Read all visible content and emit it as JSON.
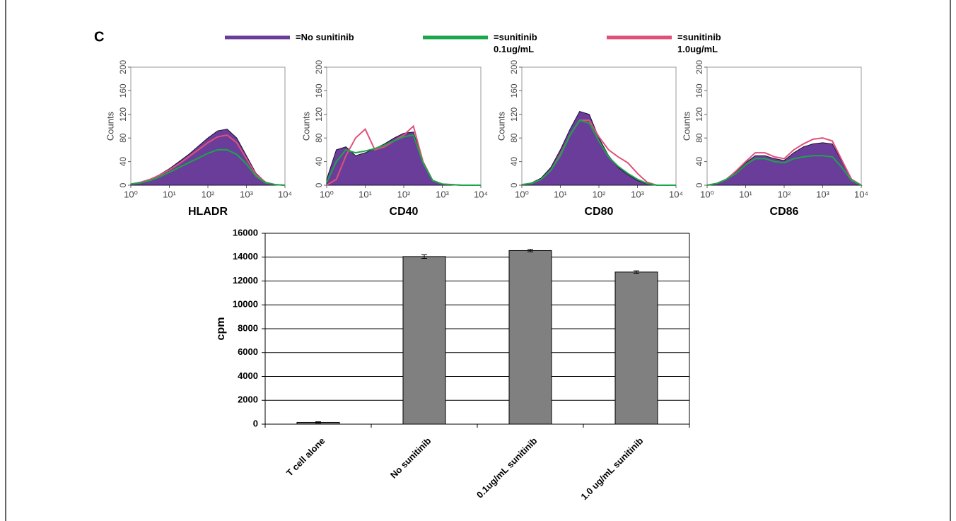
{
  "panel_label": "C",
  "chart_data": [
    {
      "type": "line",
      "xlabel": "HLADR",
      "ylabel": "Counts",
      "xscale": "log",
      "xlim": [
        1,
        10000
      ],
      "xticks": [
        {
          "value": 1,
          "label": "10⁰"
        },
        {
          "value": 10,
          "label": "10¹"
        },
        {
          "value": 100,
          "label": "10²"
        },
        {
          "value": 1000,
          "label": "10³"
        },
        {
          "value": 10000,
          "label": "10⁴"
        }
      ],
      "ylim": [
        0,
        200
      ],
      "yticks": [
        0,
        40,
        80,
        120,
        160,
        200
      ],
      "x": [
        1,
        1.78,
        3.16,
        5.62,
        10,
        17.8,
        31.6,
        56.2,
        100,
        178,
        316,
        562,
        1000,
        1778,
        3162,
        5623,
        10000
      ],
      "series": [
        {
          "name": "=No sunitinib",
          "color": "#6a3d9a",
          "filled": true,
          "values": [
            2,
            5,
            10,
            18,
            28,
            40,
            52,
            66,
            80,
            92,
            95,
            80,
            50,
            20,
            5,
            1,
            0
          ]
        },
        {
          "name": "=sunitinib 0.1ug/mL",
          "color": "#1aa64a",
          "values": [
            2,
            4,
            8,
            14,
            22,
            30,
            38,
            46,
            54,
            60,
            60,
            52,
            36,
            15,
            4,
            1,
            0
          ]
        },
        {
          "name": "=sunitinib 1.0ug/mL",
          "color": "#e0507a",
          "values": [
            2,
            5,
            10,
            17,
            26,
            36,
            48,
            60,
            72,
            82,
            85,
            72,
            45,
            18,
            5,
            1,
            0
          ]
        }
      ]
    },
    {
      "type": "line",
      "xlabel": "CD40",
      "ylabel": "Counts",
      "xscale": "log",
      "xlim": [
        1,
        10000
      ],
      "xticks": [
        {
          "value": 1,
          "label": "10⁰"
        },
        {
          "value": 10,
          "label": "10¹"
        },
        {
          "value": 100,
          "label": "10²"
        },
        {
          "value": 1000,
          "label": "10³"
        },
        {
          "value": 10000,
          "label": "10⁴"
        }
      ],
      "ylim": [
        0,
        200
      ],
      "yticks": [
        0,
        40,
        80,
        120,
        160,
        200
      ],
      "x": [
        1,
        1.78,
        3.16,
        5.62,
        10,
        17.8,
        31.6,
        56.2,
        100,
        178,
        316,
        562,
        1000,
        1778,
        3162,
        5623,
        10000
      ],
      "series": [
        {
          "color": "#6a3d9a",
          "filled": true,
          "values": [
            10,
            60,
            65,
            50,
            55,
            62,
            70,
            80,
            88,
            90,
            40,
            8,
            2,
            1,
            0,
            0,
            0
          ]
        },
        {
          "color": "#1aa64a",
          "values": [
            5,
            40,
            60,
            55,
            58,
            62,
            68,
            75,
            82,
            85,
            38,
            8,
            2,
            1,
            0,
            0,
            0
          ]
        },
        {
          "color": "#e0507a",
          "values": [
            0,
            10,
            50,
            80,
            95,
            60,
            65,
            75,
            85,
            100,
            40,
            8,
            2,
            1,
            0,
            0,
            0
          ]
        }
      ]
    },
    {
      "type": "line",
      "xlabel": "CD80",
      "ylabel": "Counts",
      "xscale": "log",
      "xlim": [
        1,
        10000
      ],
      "xticks": [
        {
          "value": 1,
          "label": "10⁰"
        },
        {
          "value": 10,
          "label": "10¹"
        },
        {
          "value": 100,
          "label": "10²"
        },
        {
          "value": 1000,
          "label": "10³"
        },
        {
          "value": 10000,
          "label": "10⁴"
        }
      ],
      "ylim": [
        0,
        200
      ],
      "yticks": [
        0,
        40,
        80,
        120,
        160,
        200
      ],
      "x": [
        1,
        1.78,
        3.16,
        5.62,
        10,
        17.8,
        31.6,
        56.2,
        100,
        178,
        316,
        562,
        1000,
        1778,
        3162,
        5623,
        10000
      ],
      "series": [
        {
          "color": "#6a3d9a",
          "filled": true,
          "values": [
            1,
            4,
            12,
            30,
            60,
            95,
            125,
            120,
            80,
            50,
            30,
            18,
            8,
            2,
            0,
            0,
            0
          ]
        },
        {
          "color": "#1aa64a",
          "values": [
            1,
            3,
            10,
            25,
            50,
            85,
            110,
            105,
            75,
            48,
            32,
            20,
            10,
            3,
            0,
            0,
            0
          ]
        },
        {
          "color": "#e0507a",
          "values": [
            1,
            3,
            10,
            25,
            52,
            85,
            110,
            110,
            82,
            60,
            48,
            38,
            20,
            5,
            0,
            0,
            0
          ]
        }
      ]
    },
    {
      "type": "line",
      "xlabel": "CD86",
      "ylabel": "Counts",
      "xscale": "log",
      "xlim": [
        1,
        10000
      ],
      "xticks": [
        {
          "value": 1,
          "label": "10⁰"
        },
        {
          "value": 10,
          "label": "10¹"
        },
        {
          "value": 100,
          "label": "10²"
        },
        {
          "value": 1000,
          "label": "10³"
        },
        {
          "value": 10000,
          "label": "10⁴"
        }
      ],
      "ylim": [
        0,
        200
      ],
      "yticks": [
        0,
        40,
        80,
        120,
        160,
        200
      ],
      "x": [
        1,
        1.78,
        3.16,
        5.62,
        10,
        17.8,
        31.6,
        56.2,
        100,
        178,
        316,
        562,
        1000,
        1778,
        3162,
        5623,
        10000
      ],
      "series": [
        {
          "color": "#6a3d9a",
          "filled": true,
          "values": [
            0,
            3,
            10,
            22,
            38,
            50,
            50,
            45,
            42,
            55,
            65,
            70,
            72,
            70,
            40,
            10,
            0
          ]
        },
        {
          "color": "#1aa64a",
          "values": [
            0,
            3,
            10,
            20,
            35,
            45,
            45,
            40,
            38,
            45,
            48,
            50,
            50,
            48,
            30,
            8,
            0
          ]
        },
        {
          "color": "#e0507a",
          "values": [
            0,
            3,
            10,
            24,
            40,
            55,
            55,
            48,
            45,
            60,
            70,
            78,
            80,
            75,
            42,
            10,
            0
          ]
        }
      ]
    },
    {
      "type": "bar",
      "ylabel": "cpm",
      "categories": [
        "T cell alone",
        "No sunitinib",
        "0.1ug/mL sunitinib",
        "1.0 ug/mL sunitinib"
      ],
      "values": [
        150,
        14050,
        14550,
        12750
      ],
      "errors": [
        50,
        150,
        100,
        100
      ],
      "color": "#808080",
      "ylim": [
        0,
        16000
      ],
      "yticks": [
        0,
        2000,
        4000,
        6000,
        8000,
        10000,
        12000,
        14000,
        16000
      ],
      "grid": true
    }
  ]
}
